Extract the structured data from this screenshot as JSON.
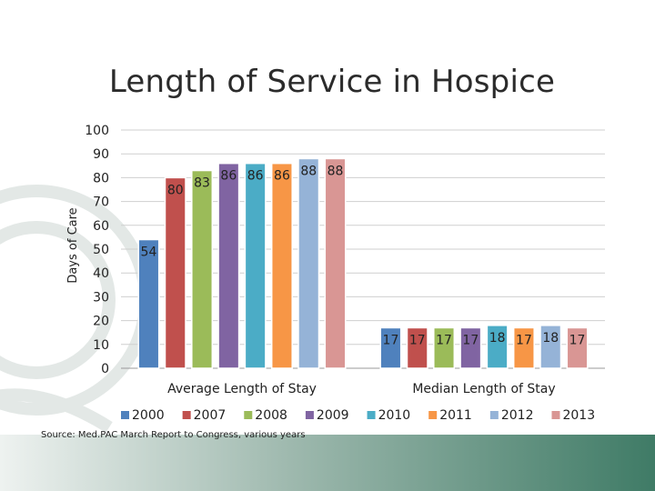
{
  "slide": {
    "title": "Length of Service in Hospice",
    "source": "Source:  Med.PAC March Report to Congress, various years"
  },
  "chart_data": {
    "type": "bar",
    "title": "Length of Service in Hospice",
    "xlabel": "",
    "ylabel": "Days of Care",
    "ylim": [
      0,
      100
    ],
    "yticks": [
      0,
      10,
      20,
      30,
      40,
      50,
      60,
      70,
      80,
      90,
      100
    ],
    "grid": true,
    "legend_position": "bottom",
    "categories": [
      "Average Length of Stay",
      "Median Length of Stay"
    ],
    "series": [
      {
        "name": "2000",
        "color": "#4f81bd",
        "values": [
          54,
          17
        ]
      },
      {
        "name": "2007",
        "color": "#c0504d",
        "values": [
          80,
          17
        ]
      },
      {
        "name": "2008",
        "color": "#9bbb59",
        "values": [
          83,
          17
        ]
      },
      {
        "name": "2009",
        "color": "#8064a2",
        "values": [
          86,
          17
        ]
      },
      {
        "name": "2010",
        "color": "#4bacc6",
        "values": [
          86,
          18
        ]
      },
      {
        "name": "2011",
        "color": "#f79646",
        "values": [
          86,
          17
        ]
      },
      {
        "name": "2012",
        "color": "#95b3d7",
        "values": [
          88,
          18
        ]
      },
      {
        "name": "2013",
        "color": "#d99694",
        "values": [
          88,
          17
        ]
      }
    ]
  }
}
